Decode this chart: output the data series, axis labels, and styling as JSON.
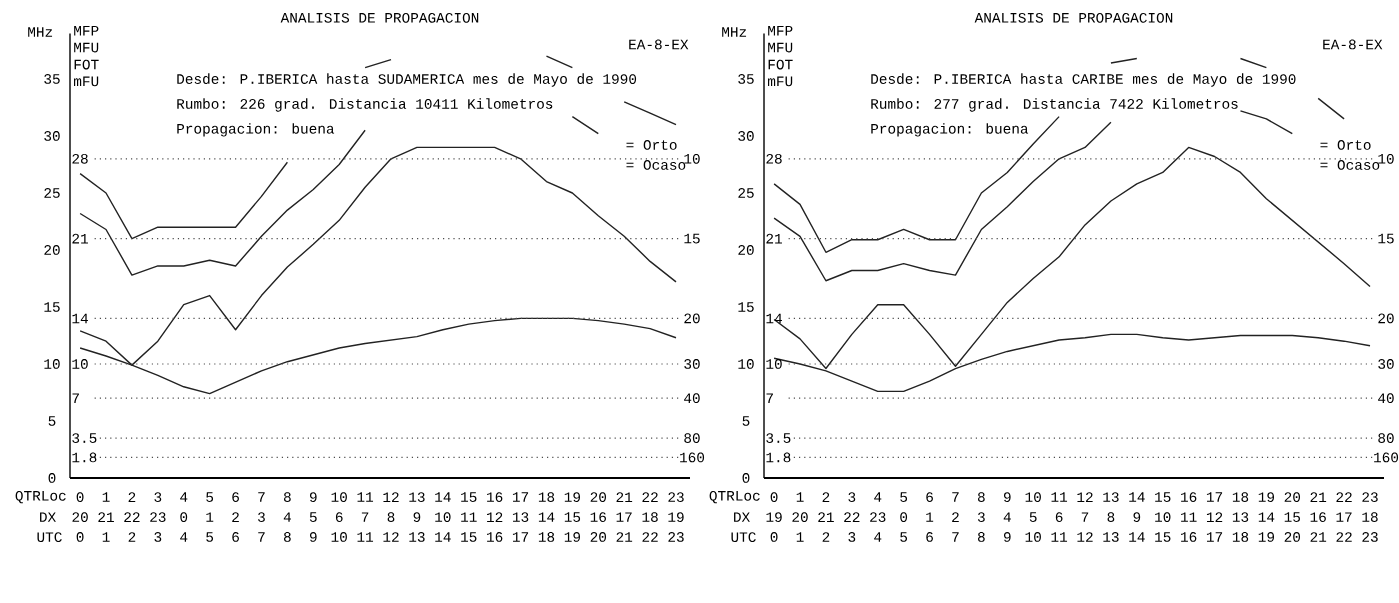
{
  "chart_data": [
    {
      "type": "line",
      "title": "ANALISIS DE PROPAGACION",
      "ylabel": "MHz",
      "xlabel": "UTC",
      "categories": [
        "0",
        "1",
        "2",
        "3",
        "4",
        "5",
        "6",
        "7",
        "8",
        "9",
        "10",
        "11",
        "12",
        "13",
        "14",
        "15",
        "16",
        "17",
        "18",
        "19",
        "20",
        "21",
        "22",
        "23"
      ],
      "series": [
        {
          "color": "#222222",
          "values": [
            26.7,
            25,
            21,
            22,
            22,
            22,
            22,
            24.7,
            27.7,
            null,
            null,
            36,
            36.7,
            null,
            null,
            null,
            null,
            null,
            37,
            36,
            null,
            33,
            32,
            31
          ]
        },
        {
          "color": "#222222",
          "values": [
            23.2,
            21.8,
            17.8,
            18.6,
            18.6,
            19.1,
            18.6,
            21.2,
            23.5,
            25.3,
            27.5,
            30.5,
            null,
            null,
            null,
            null,
            null,
            null,
            null,
            31.7,
            30.2,
            null,
            null,
            null
          ]
        },
        {
          "color": "#222222",
          "values": [
            12.9,
            12,
            9.9,
            12,
            15.2,
            16,
            13,
            16,
            18.5,
            20.5,
            22.6,
            25.5,
            28,
            29,
            29,
            29,
            29,
            28,
            26,
            25,
            23,
            21.2,
            19,
            17.2
          ]
        },
        {
          "color": "#222222",
          "values": [
            11.4,
            10.7,
            9.9,
            9,
            8,
            7.4,
            8.4,
            9.4,
            10.2,
            10.8,
            11.4,
            11.8,
            12.1,
            12.4,
            13,
            13.5,
            13.8,
            14,
            14,
            14,
            13.8,
            13.5,
            13.1,
            12.3
          ]
        }
      ],
      "ylim": [
        0,
        39
      ],
      "yticks": [
        0,
        5,
        10,
        15,
        20,
        25,
        30,
        35
      ],
      "ref_lines": [
        {
          "axis": "y",
          "value": 28,
          "label": "28",
          "line_style": "dotted"
        },
        {
          "axis": "y",
          "value": 21,
          "label": "21",
          "line_style": "dotted"
        },
        {
          "axis": "y",
          "value": 14,
          "label": "14",
          "line_style": "dotted"
        },
        {
          "axis": "y",
          "value": 10,
          "label": "10",
          "line_style": "dotted"
        },
        {
          "axis": "y",
          "value": 7,
          "label": "7",
          "line_style": "dotted"
        },
        {
          "axis": "y",
          "value": 3.5,
          "label": "3.5",
          "line_style": "dotted"
        },
        {
          "axis": "y",
          "value": 1.8,
          "label": "1.8",
          "line_style": "dotted"
        }
      ],
      "annotations": [
        "EA-8-EX",
        "Desde: P.IBERICA hasta SUDAMERICA mes de Mayo de 1990",
        "Rumbo: 226 grad. Distancia 10411 Kilometros",
        "Propagacion: buena",
        "MFP",
        "MFU",
        "FOT",
        "mFU",
        "= Orto",
        "= Ocaso",
        "QTRLoc",
        "DX",
        "0",
        "1",
        "2",
        "3",
        "4",
        "5",
        "6",
        "7",
        "8",
        "9",
        "10",
        "11",
        "12",
        "13",
        "14",
        "15",
        "16",
        "17",
        "18",
        "19",
        "20",
        "21",
        "22",
        "23",
        "20",
        "21",
        "22",
        "23",
        "0",
        "1",
        "2",
        "3",
        "4",
        "5",
        "6",
        "7",
        "8",
        "9",
        "10",
        "11",
        "12",
        "13",
        "14",
        "15",
        "16",
        "17",
        "18",
        "19",
        "10",
        "15",
        "20",
        "30",
        "40",
        "80",
        "160"
      ]
    },
    {
      "type": "line",
      "title": "ANALISIS DE PROPAGACION",
      "ylabel": "MHz",
      "xlabel": "UTC",
      "categories": [
        "0",
        "1",
        "2",
        "3",
        "4",
        "5",
        "6",
        "7",
        "8",
        "9",
        "10",
        "11",
        "12",
        "13",
        "14",
        "15",
        "16",
        "17",
        "18",
        "19",
        "20",
        "21",
        "22",
        "23"
      ],
      "series": [
        {
          "color": "#222222",
          "values": [
            25.8,
            24,
            19.8,
            20.9,
            20.9,
            21.8,
            20.9,
            20.9,
            25,
            26.8,
            29.3,
            31.7,
            null,
            36.4,
            36.8,
            null,
            null,
            null,
            36.8,
            36,
            null,
            33.3,
            31.5,
            null
          ]
        },
        {
          "color": "#222222",
          "values": [
            22.8,
            21.2,
            17.3,
            18.2,
            18.2,
            18.8,
            18.2,
            17.8,
            21.8,
            23.8,
            26,
            28,
            29,
            31.2,
            null,
            null,
            null,
            null,
            32.2,
            31.5,
            30.2,
            null,
            null,
            null
          ]
        },
        {
          "color": "#222222",
          "values": [
            13.9,
            12.2,
            9.6,
            12.6,
            15.2,
            15.2,
            12.6,
            9.8,
            12.6,
            15.4,
            17.5,
            19.4,
            22.2,
            24.3,
            25.8,
            26.8,
            29,
            28.2,
            26.8,
            24.5,
            22.6,
            20.7,
            18.8,
            16.8
          ]
        },
        {
          "color": "#222222",
          "values": [
            10.5,
            10,
            9.4,
            8.5,
            7.6,
            7.6,
            8.5,
            9.6,
            10.4,
            11.1,
            11.6,
            12.1,
            12.3,
            12.6,
            12.6,
            12.3,
            12.1,
            12.3,
            12.5,
            12.5,
            12.5,
            12.3,
            12,
            11.6
          ]
        }
      ],
      "ylim": [
        0,
        39
      ],
      "yticks": [
        0,
        5,
        10,
        15,
        20,
        25,
        30,
        35
      ],
      "ref_lines": [
        {
          "axis": "y",
          "value": 28,
          "label": "28",
          "line_style": "dotted"
        },
        {
          "axis": "y",
          "value": 21,
          "label": "21",
          "line_style": "dotted"
        },
        {
          "axis": "y",
          "value": 14,
          "label": "14",
          "line_style": "dotted"
        },
        {
          "axis": "y",
          "value": 10,
          "label": "10",
          "line_style": "dotted"
        },
        {
          "axis": "y",
          "value": 7,
          "label": "7",
          "line_style": "dotted"
        },
        {
          "axis": "y",
          "value": 3.5,
          "label": "3.5",
          "line_style": "dotted"
        },
        {
          "axis": "y",
          "value": 1.8,
          "label": "1.8",
          "line_style": "dotted"
        }
      ],
      "annotations": [
        "EA-8-EX",
        "Desde: P.IBERICA hasta CARIBE mes de Mayo de 1990",
        "Rumbo: 277 grad. Distancia 7422 Kilometros",
        "Propagacion: buena",
        "MFP",
        "MFU",
        "FOT",
        "mFU",
        "= Orto",
        "= Ocaso",
        "QTRLoc",
        "DX",
        "0",
        "1",
        "2",
        "3",
        "4",
        "5",
        "6",
        "7",
        "8",
        "9",
        "10",
        "11",
        "12",
        "13",
        "14",
        "15",
        "16",
        "17",
        "18",
        "19",
        "20",
        "21",
        "22",
        "23",
        "19",
        "20",
        "21",
        "22",
        "23",
        "0",
        "1",
        "2",
        "3",
        "4",
        "5",
        "6",
        "7",
        "8",
        "9",
        "10",
        "11",
        "12",
        "13",
        "14",
        "15",
        "16",
        "17",
        "18",
        "10",
        "15",
        "20",
        "30",
        "40",
        "80",
        "160"
      ]
    }
  ]
}
